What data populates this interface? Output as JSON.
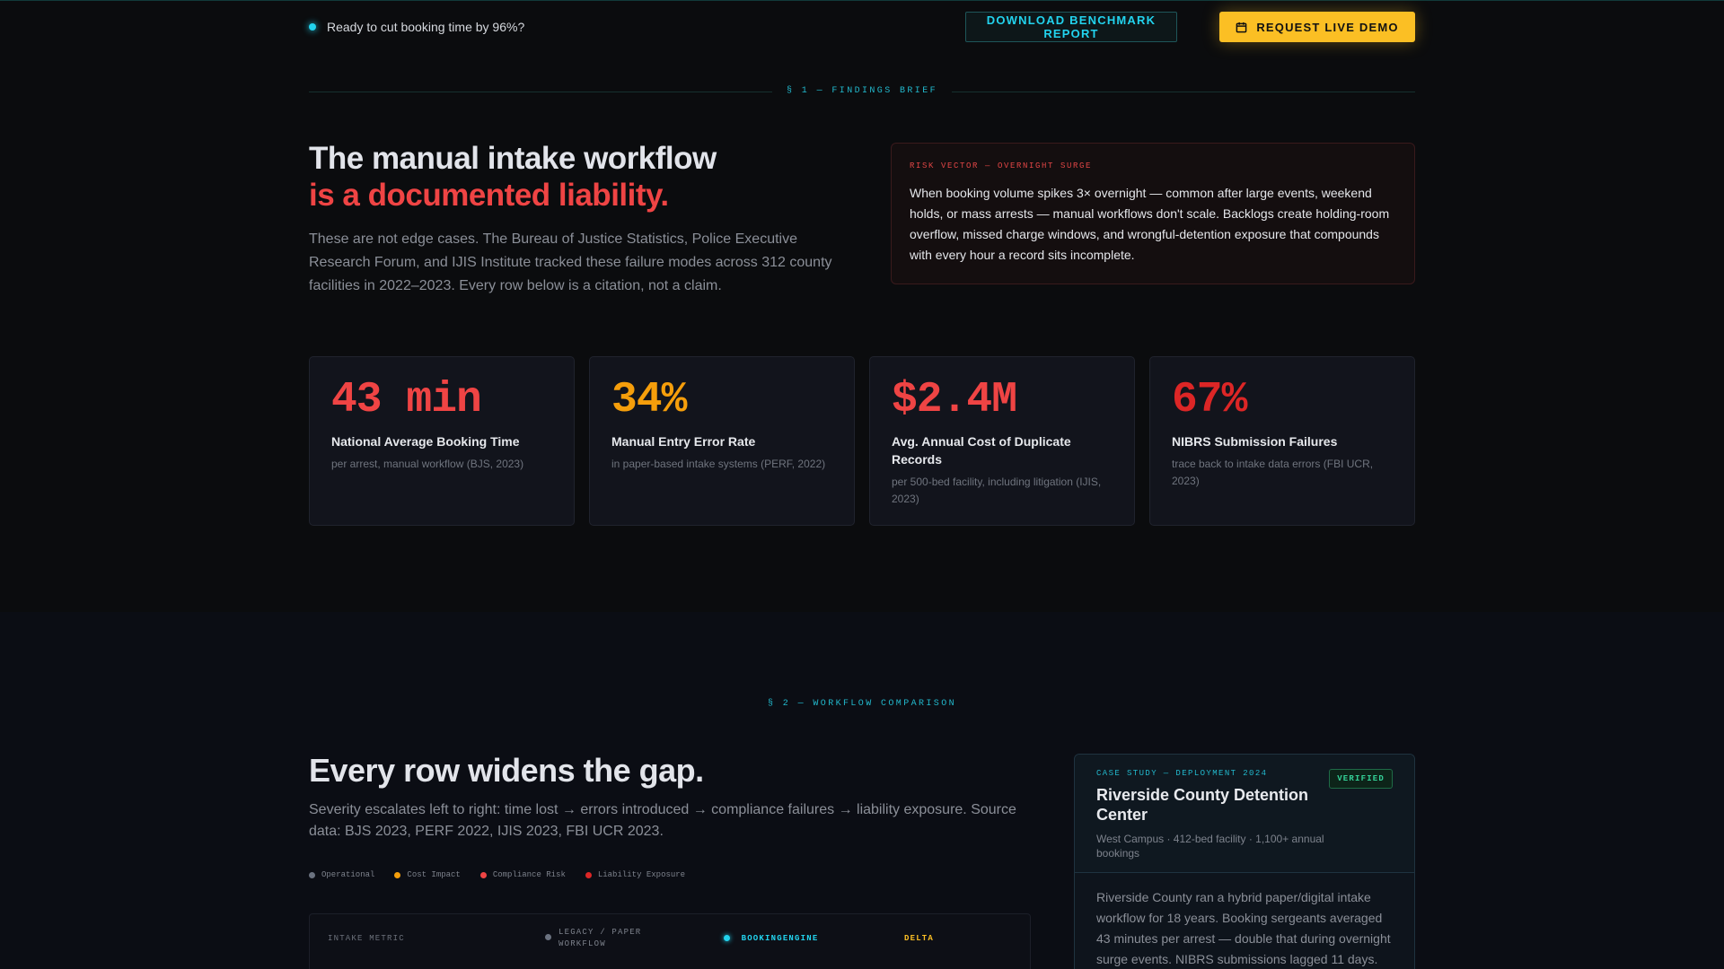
{
  "topbar": {
    "ready_text": "Ready to cut booking time by 96%?",
    "download_label": "DOWNLOAD BENCHMARK REPORT",
    "demo_label": "REQUEST LIVE DEMO",
    "demo_icon": "calendar-icon"
  },
  "findings": {
    "section_label": "§ 1 — FINDINGS BRIEF",
    "headline_line1": "The manual intake workflow",
    "headline_line2": "is a documented liability.",
    "lead": "These are not edge cases. The Bureau of Justice Statistics, Police Executive Research Forum, and IJIS Institute tracked these failure modes across 312 county facilities in 2022–2023. Every row below is a citation, not a claim.",
    "risk_label": "RISK VECTOR — OVERNIGHT SURGE",
    "risk_text": "When booking volume spikes 3× overnight — common after large events, weekend holds, or mass arrests — manual workflows don't scale. Backlogs create holding-room overflow, missed charge windows, and wrongful-detention exposure that compounds with every hour a record sits incomplete.",
    "stats": [
      {
        "value": "43 min",
        "title": "National Average Booking Time",
        "note": "per arrest, manual workflow (BJS, 2023)",
        "color": "#ef4444"
      },
      {
        "value": "34%",
        "title": "Manual Entry Error Rate",
        "note": "in paper-based intake systems (PERF, 2022)",
        "color": "#f59e0b"
      },
      {
        "value": "$2.4M",
        "title": "Avg. Annual Cost of Duplicate Records",
        "note": "per 500-bed facility, including litigation (IJIS, 2023)",
        "color": "#ef4444"
      },
      {
        "value": "67%",
        "title": "NIBRS Submission Failures",
        "note": "trace back to intake data errors (FBI UCR, 2023)",
        "color": "#dc2626"
      }
    ]
  },
  "comparison": {
    "section_label": "§ 2 — WORKFLOW COMPARISON",
    "headline": "Every row widens the gap.",
    "lead": "Severity escalates left to right: time lost → errors introduced → compliance failures → liability exposure. Source data: BJS 2023, PERF 2022, IJIS 2023, FBI UCR 2023.",
    "legend": [
      {
        "label": "Operational",
        "color": "#6b7280"
      },
      {
        "label": "Cost Impact",
        "color": "#f59e0b"
      },
      {
        "label": "Compliance Risk",
        "color": "#ef4444"
      },
      {
        "label": "Liability Exposure",
        "color": "#dc2626"
      }
    ],
    "table_headers": {
      "metric": "INTAKE METRIC",
      "legacy_line1": "LEGACY / PAPER",
      "legacy_line2": "WORKFLOW",
      "engine": "BOOKINGENGINE",
      "delta": "DELTA"
    },
    "case": {
      "label": "CASE STUDY — DEPLOYMENT 2024",
      "title": "Riverside County Detention Center",
      "subtitle": "West Campus · 412-bed facility · 1,100+ annual bookings",
      "badge": "VERIFIED",
      "body": "Riverside County ran a hybrid paper/digital intake workflow for 18 years. Booking sergeants averaged 43 minutes per arrest — double that during overnight surge events. NIBRS submissions lagged 11 days."
    }
  }
}
